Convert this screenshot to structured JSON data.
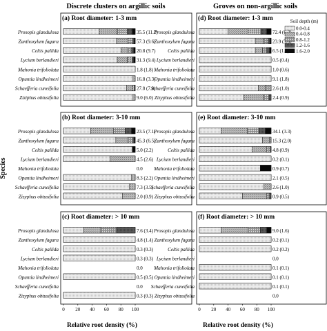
{
  "figure": {
    "col_titles": [
      "Discrete clusters on argillic soils",
      "Groves on non-argillic soils"
    ],
    "ylabel": "Species",
    "xlabel": "Relative root density (%)",
    "xticks": [
      "0",
      "20",
      "40",
      "60",
      "80",
      "100"
    ],
    "legend": {
      "title": "Soil depth (m)",
      "entries": [
        "0.0-0.4",
        "0.4-0.8",
        "0.8-1.2",
        "1.2-1.6",
        "1.6-2.0"
      ]
    }
  },
  "chart_data": [
    {
      "type": "bar",
      "stacked": true,
      "orientation": "horizontal",
      "panel": "(a) Root diameter: 1-3 mm",
      "categories": [
        "Prosopis glandulosa",
        "Zanthoxylum fagara",
        "Celtis pallida",
        "Lycium berlandieri",
        "Mahonia trifoliolata",
        "Opuntia lindheimeri",
        "Schaefferia cuneifolia",
        "Ziziphus obtusifolia"
      ],
      "labels": [
        "35.5 (11.2)",
        "57.3 (9.6)",
        "20.8 (9.7)",
        "31.3 (9.4)",
        "1.8 (1.8)",
        "16.8 (3.3)",
        "27.8 (7.0)",
        "9.0 (6.0)"
      ],
      "segments": [
        [
          50,
          25,
          14,
          7,
          4
        ],
        [
          74,
          16,
          7,
          2,
          1
        ],
        [
          80,
          10,
          5,
          3,
          2
        ],
        [
          75,
          14,
          7,
          2,
          2
        ],
        [
          100,
          0,
          0,
          0,
          0
        ],
        [
          97,
          3,
          0,
          0,
          0
        ],
        [
          88,
          8,
          3,
          1,
          0
        ],
        [
          97,
          3,
          0,
          0,
          0
        ]
      ],
      "xlim": [
        0,
        100
      ]
    },
    {
      "type": "bar",
      "stacked": true,
      "orientation": "horizontal",
      "panel": "(b) Root diameter: 3-10 mm",
      "categories": [
        "Prosopis glandulosa",
        "Zanthoxylum fagara",
        "Celtis pallida",
        "Lycium berlandieri",
        "Mahonia trifoliolata",
        "Opuntia lindheimeri",
        "Schaefferia cuneifolia",
        "Zizyphus obtusifolia"
      ],
      "labels": [
        "23.5 (7.1)",
        "45.3 (6.5)",
        "5.0 (2.2)",
        "4.5 (2.6)",
        "0.0",
        "8.3 (2.2)",
        "7.3 (3.5)",
        "2.0 (0.9)"
      ],
      "segments": [
        [
          38,
          32,
          16,
          9,
          5
        ],
        [
          73,
          17,
          7,
          2,
          1
        ],
        [
          96,
          0,
          0,
          0,
          4
        ],
        [
          65,
          35,
          0,
          0,
          0
        ],
        [
          0,
          0,
          0,
          0,
          0
        ],
        [
          95,
          5,
          0,
          0,
          0
        ],
        [
          92,
          8,
          0,
          0,
          0
        ],
        [
          82,
          18,
          0,
          0,
          0
        ]
      ],
      "xlim": [
        0,
        100
      ]
    },
    {
      "type": "bar",
      "stacked": true,
      "orientation": "horizontal",
      "panel": "(c) Root diameter: > 10 mm",
      "categories": [
        "Prosopis glandulosa",
        "Zanthoxylum fagara",
        "Celtis pallida",
        "Lycium berlandieri",
        "Mahonia trifoliolata",
        "Opuntia lindheimeri",
        "Schaefferia cuneifolia",
        "Zizyphus obtusifolia"
      ],
      "labels": [
        "7.6 (3.4)",
        "4.8 (1.4)",
        "0.3 (0.3)",
        "0.3 (0.3)",
        "0.0",
        "0.5 (0.5)",
        "0.0",
        "0.3 (0.3)"
      ],
      "segments": [
        [
          28,
          24,
          22,
          26,
          0
        ],
        [
          100,
          0,
          0,
          0,
          0
        ],
        [
          100,
          0,
          0,
          0,
          0
        ],
        [
          100,
          0,
          0,
          0,
          0
        ],
        [
          0,
          0,
          0,
          0,
          0
        ],
        [
          100,
          0,
          0,
          0,
          0
        ],
        [
          0,
          0,
          0,
          0,
          0
        ],
        [
          100,
          0,
          0,
          0,
          0
        ]
      ],
      "xlim": [
        0,
        100
      ]
    },
    {
      "type": "bar",
      "stacked": true,
      "orientation": "horizontal",
      "panel": "(d) Root diameter: 1-3 mm",
      "categories": [
        "Prosopis glandulosa",
        "Zanthoxylum fagara",
        "Celtis pallida",
        "Lycium berlandieri",
        "Mahonia trifoliolata",
        "Opuntia lindheimeri",
        "Schaefferia cuneifolia",
        "Zizyphus obtusifolia"
      ],
      "labels": [
        "72.4 (6.3)",
        "23.9 (3.0)",
        "6.5 (1.3)",
        "0.5 (0.4)",
        "1.0 (0.6)",
        "9.1 (1.8)",
        "2.6 (1.0)",
        "2.4 (0.9)"
      ],
      "segments": [
        [
          40,
          28,
          18,
          8,
          6
        ],
        [
          78,
          12,
          6,
          3,
          1
        ],
        [
          78,
          10,
          6,
          4,
          2
        ],
        [
          100,
          0,
          0,
          0,
          0
        ],
        [
          100,
          0,
          0,
          0,
          0
        ],
        [
          100,
          0,
          0,
          0,
          0
        ],
        [
          82,
          10,
          8,
          0,
          0
        ],
        [
          62,
          28,
          7,
          3,
          0
        ]
      ],
      "xlim": [
        0,
        100
      ]
    },
    {
      "type": "bar",
      "stacked": true,
      "orientation": "horizontal",
      "panel": "(e) Root diameter: 3-10 mm",
      "categories": [
        "Prosopis glandulosa",
        "Zanthoxylum fagara",
        "Celtis pallida",
        "Lycium berlandieri",
        "Mahonia trifoliolata",
        "Opuntia lindheimeri",
        "Schaefferia cuneifolia",
        "Zizyphus obtusifolia"
      ],
      "labels": [
        "34.1 (3.3)",
        "15.3 (2.0)",
        "4.8 (0.9)",
        "0.2 (0.1)",
        "0.9 (0.7)",
        "2.1 (0.5)",
        "2.6 (1.0)",
        "0.9 (0.5)"
      ],
      "segments": [
        [
          30,
          37,
          16,
          9,
          8
        ],
        [
          88,
          10,
          2,
          0,
          0
        ],
        [
          74,
          20,
          5,
          1,
          0
        ],
        [
          100,
          0,
          0,
          0,
          0
        ],
        [
          85,
          0,
          0,
          0,
          15
        ],
        [
          100,
          0,
          0,
          0,
          0
        ],
        [
          90,
          10,
          0,
          0,
          0
        ],
        [
          60,
          34,
          4,
          2,
          0
        ]
      ],
      "xlim": [
        0,
        100
      ]
    },
    {
      "type": "bar",
      "stacked": true,
      "orientation": "horizontal",
      "panel": "(f) Root diameter: > 10 mm",
      "categories": [
        "Prosopis glandulosa",
        "Zanthoxylum fagara",
        "Celtis pallida",
        "Lycium berlandieri",
        "Mahonia trifoliolata",
        "Opuntia lindheimeri",
        "Schaefferia cuneifolia",
        "Zizyphus obtusifolia"
      ],
      "labels": [
        "9.0 (1.6)",
        "0.2 (0.1)",
        "0.2 (0.2)",
        "0.0",
        "0.1 (0.1)",
        "0.1 (0.1)",
        "0.1 (0.1)",
        "0.0"
      ],
      "segments": [
        [
          30,
          38,
          17,
          9,
          6
        ],
        [
          100,
          0,
          0,
          0,
          0
        ],
        [
          100,
          0,
          0,
          0,
          0
        ],
        [
          0,
          0,
          0,
          0,
          0
        ],
        [
          100,
          0,
          0,
          0,
          0
        ],
        [
          100,
          0,
          0,
          0,
          0
        ],
        [
          100,
          0,
          0,
          0,
          0
        ],
        [
          0,
          0,
          0,
          0,
          0
        ]
      ],
      "xlim": [
        0,
        100
      ]
    }
  ]
}
